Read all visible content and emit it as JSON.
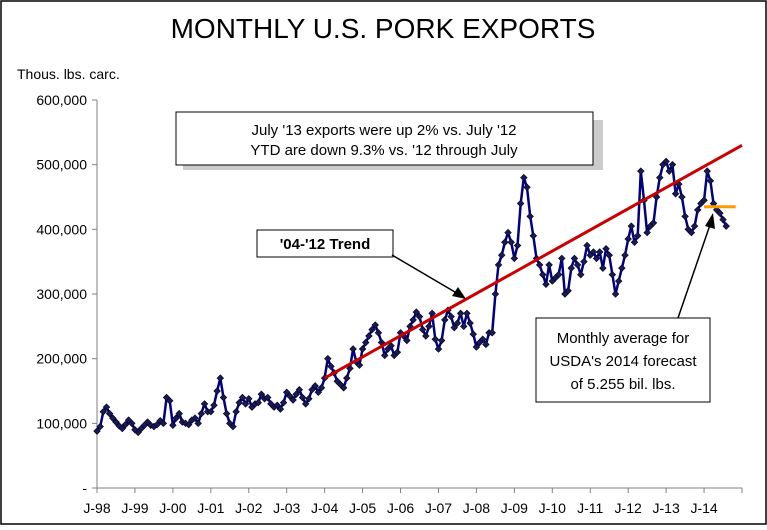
{
  "chart_data": {
    "type": "line",
    "title": "MONTHLY U.S. PORK EXPORTS",
    "ylabel": "Thous. lbs. carc.",
    "ylim": [
      0,
      600000
    ],
    "xlim": [
      "J-98",
      "J-15"
    ],
    "grid": false,
    "y_ticks": [
      {
        "value": 0,
        "label": "-"
      },
      {
        "value": 100000,
        "label": "100,000"
      },
      {
        "value": 200000,
        "label": "200,000"
      },
      {
        "value": 300000,
        "label": "300,000"
      },
      {
        "value": 400000,
        "label": "400,000"
      },
      {
        "value": 500000,
        "label": "500,000"
      },
      {
        "value": 600000,
        "label": "600,000"
      }
    ],
    "x_ticks": [
      "J-98",
      "J-99",
      "J-00",
      "J-01",
      "J-02",
      "J-03",
      "J-04",
      "J-05",
      "J-06",
      "J-07",
      "J-08",
      "J-09",
      "J-10",
      "J-11",
      "J-12",
      "J-13",
      "J-14"
    ],
    "start_year": 1998,
    "series": [
      {
        "name": "",
        "color": "#000080",
        "marker_color": "#1a1a4e",
        "values": [
          88000,
          95000,
          118000,
          125000,
          115000,
          108000,
          102000,
          96000,
          92000,
          98000,
          105000,
          100000,
          90000,
          86000,
          92000,
          97000,
          102000,
          97000,
          95000,
          98000,
          104000,
          100000,
          140000,
          135000,
          97000,
          108000,
          115000,
          102000,
          100000,
          98000,
          105000,
          108000,
          100000,
          115000,
          130000,
          118000,
          118000,
          128000,
          150000,
          170000,
          140000,
          115000,
          100000,
          95000,
          118000,
          132000,
          140000,
          130000,
          138000,
          125000,
          130000,
          132000,
          145000,
          138000,
          140000,
          130000,
          125000,
          128000,
          122000,
          132000,
          148000,
          142000,
          136000,
          145000,
          152000,
          140000,
          130000,
          138000,
          152000,
          158000,
          148000,
          155000,
          170000,
          200000,
          188000,
          178000,
          165000,
          160000,
          155000,
          170000,
          185000,
          215000,
          195000,
          190000,
          215000,
          225000,
          235000,
          245000,
          252000,
          240000,
          225000,
          205000,
          215000,
          220000,
          205000,
          210000,
          240000,
          235000,
          228000,
          250000,
          260000,
          272000,
          265000,
          245000,
          235000,
          250000,
          270000,
          230000,
          215000,
          228000,
          260000,
          275000,
          265000,
          248000,
          255000,
          270000,
          250000,
          270000,
          255000,
          238000,
          218000,
          225000,
          230000,
          222000,
          240000,
          240000,
          300000,
          345000,
          360000,
          380000,
          395000,
          380000,
          355000,
          375000,
          440000,
          480000,
          465000,
          420000,
          390000,
          355000,
          345000,
          330000,
          315000,
          345000,
          320000,
          325000,
          330000,
          355000,
          300000,
          305000,
          340000,
          355000,
          345000,
          330000,
          350000,
          375000,
          360000,
          365000,
          355000,
          365000,
          340000,
          370000,
          360000,
          330000,
          300000,
          320000,
          340000,
          360000,
          385000,
          405000,
          380000,
          390000,
          490000,
          445000,
          395000,
          405000,
          410000,
          450000,
          480000,
          500000,
          505000,
          490000,
          500000,
          455000,
          470000,
          450000,
          420000,
          400000,
          395000,
          405000,
          430000,
          440000,
          445000,
          490000,
          475000,
          440000,
          430000,
          425000,
          415000,
          405000
        ]
      }
    ],
    "trend": {
      "label": "'04-'12 Trend",
      "x_start_label": "J-04",
      "x_end_label": "J-15",
      "start_value": 170000,
      "end_value": 530000,
      "color": "#cc0000"
    },
    "forecast": {
      "value": 435000,
      "x_start_label": "J-14",
      "x_end_label": "J-15",
      "color": "#ff9900"
    },
    "annotations": {
      "summary_line1": "July '13 exports were up 2% vs. July '12",
      "summary_line2": "YTD are down 9.3% vs. '12 through July",
      "trend_label": "'04-'12 Trend",
      "forecast_line1": "Monthly average for",
      "forecast_line2": "USDA's 2014 forecast",
      "forecast_line3": "of 5.255 bil. lbs."
    }
  }
}
